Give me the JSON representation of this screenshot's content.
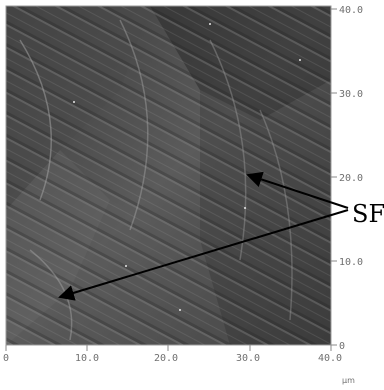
{
  "image": {
    "description_icon": "afm-surface-topography-image",
    "colors": {
      "dark": "#2a2a2a",
      "mid": "#5a5a5a",
      "light": "#9a9a9a"
    }
  },
  "axes": {
    "x_ticks": [
      "0",
      "10.0",
      "20.0",
      "30.0",
      "40.0"
    ],
    "y_ticks": [
      "0",
      "10.0",
      "20.0",
      "30.0",
      "40.0"
    ],
    "unit": "µm"
  },
  "annotation": {
    "label": "SF"
  }
}
